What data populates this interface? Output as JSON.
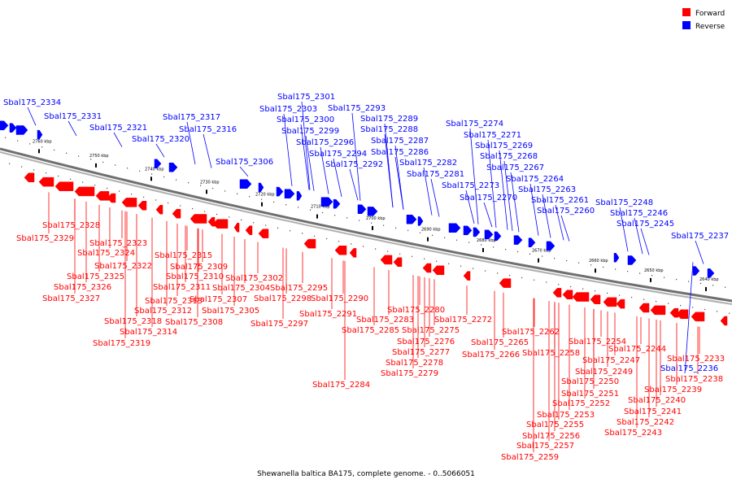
{
  "caption": "Shewanella baltica BA175, complete genome. - 0..5066051",
  "legend": [
    {
      "label": "Forward",
      "color": "#ff0000"
    },
    {
      "label": "Reverse",
      "color": "#0000ff"
    }
  ],
  "colors": {
    "forward": "#ff0000",
    "reverse": "#0000ff",
    "backbone": "#808080"
  },
  "ticks": [
    "2760 kbp",
    "2750 kbp",
    "2740 kbp",
    "2730 kbp",
    "2720 kbp",
    "2710 kbp",
    "2700 kbp",
    "2690 kbp",
    "2680 kbp",
    "2670 kbp",
    "2660 kbp",
    "2650 kbp",
    "2640 kbp"
  ],
  "reverse_labels": [
    "Sbal175_2334",
    "Sbal175_2331",
    "Sbal175_2321",
    "Sbal175_2320",
    "Sbal175_2317",
    "Sbal175_2316",
    "Sbal175_2306",
    "Sbal175_2301",
    "Sbal175_2303",
    "Sbal175_2300",
    "Sbal175_2299",
    "Sbal175_2296",
    "Sbal175_2294",
    "Sbal175_2293",
    "Sbal175_2289",
    "Sbal175_2288",
    "Sbal175_2287",
    "Sbal175_2286",
    "Sbal175_2292",
    "Sbal175_2282",
    "Sbal175_2281",
    "Sbal175_2274",
    "Sbal175_2271",
    "Sbal175_2269",
    "Sbal175_2268",
    "Sbal175_2267",
    "Sbal175_2273",
    "Sbal175_2264",
    "Sbal175_2270",
    "Sbal175_2263",
    "Sbal175_2261",
    "Sbal175_2260",
    "Sbal175_2248",
    "Sbal175_2246",
    "Sbal175_2245",
    "Sbal175_2237",
    "Sbal175_2236"
  ],
  "forward_labels": [
    "Sbal175_2328",
    "Sbal175_2329",
    "Sbal175_2323",
    "Sbal175_2324",
    "Sbal175_2322",
    "Sbal175_2325",
    "Sbal175_2326",
    "Sbal175_2327",
    "Sbal175_2315",
    "Sbal175_2309",
    "Sbal175_2310",
    "Sbal175_2311",
    "Sbal175_2313",
    "Sbal175_2312",
    "Sbal175_2318",
    "Sbal175_2314",
    "Sbal175_2319",
    "Sbal175_2307",
    "Sbal175_2308",
    "Sbal175_2305",
    "Sbal175_2302",
    "Sbal175_2304",
    "Sbal175_2298",
    "Sbal175_2297",
    "Sbal175_2295",
    "Sbal175_2290",
    "Sbal175_2291",
    "Sbal175_2283",
    "Sbal175_2285",
    "Sbal175_2284",
    "Sbal175_2280",
    "Sbal175_2275",
    "Sbal175_2276",
    "Sbal175_2277",
    "Sbal175_2278",
    "Sbal175_2279",
    "Sbal175_2272",
    "Sbal175_2262",
    "Sbal175_2265",
    "Sbal175_2266",
    "Sbal175_2258",
    "Sbal175_2254",
    "Sbal175_2247",
    "Sbal175_2249",
    "Sbal175_2250",
    "Sbal175_2251",
    "Sbal175_2252",
    "Sbal175_2253",
    "Sbal175_2255",
    "Sbal175_2256",
    "Sbal175_2257",
    "Sbal175_2259",
    "Sbal175_2244",
    "Sbal175_2238",
    "Sbal175_2239",
    "Sbal175_2240",
    "Sbal175_2241",
    "Sbal175_2242",
    "Sbal175_2243",
    "Sbal175_2233"
  ]
}
